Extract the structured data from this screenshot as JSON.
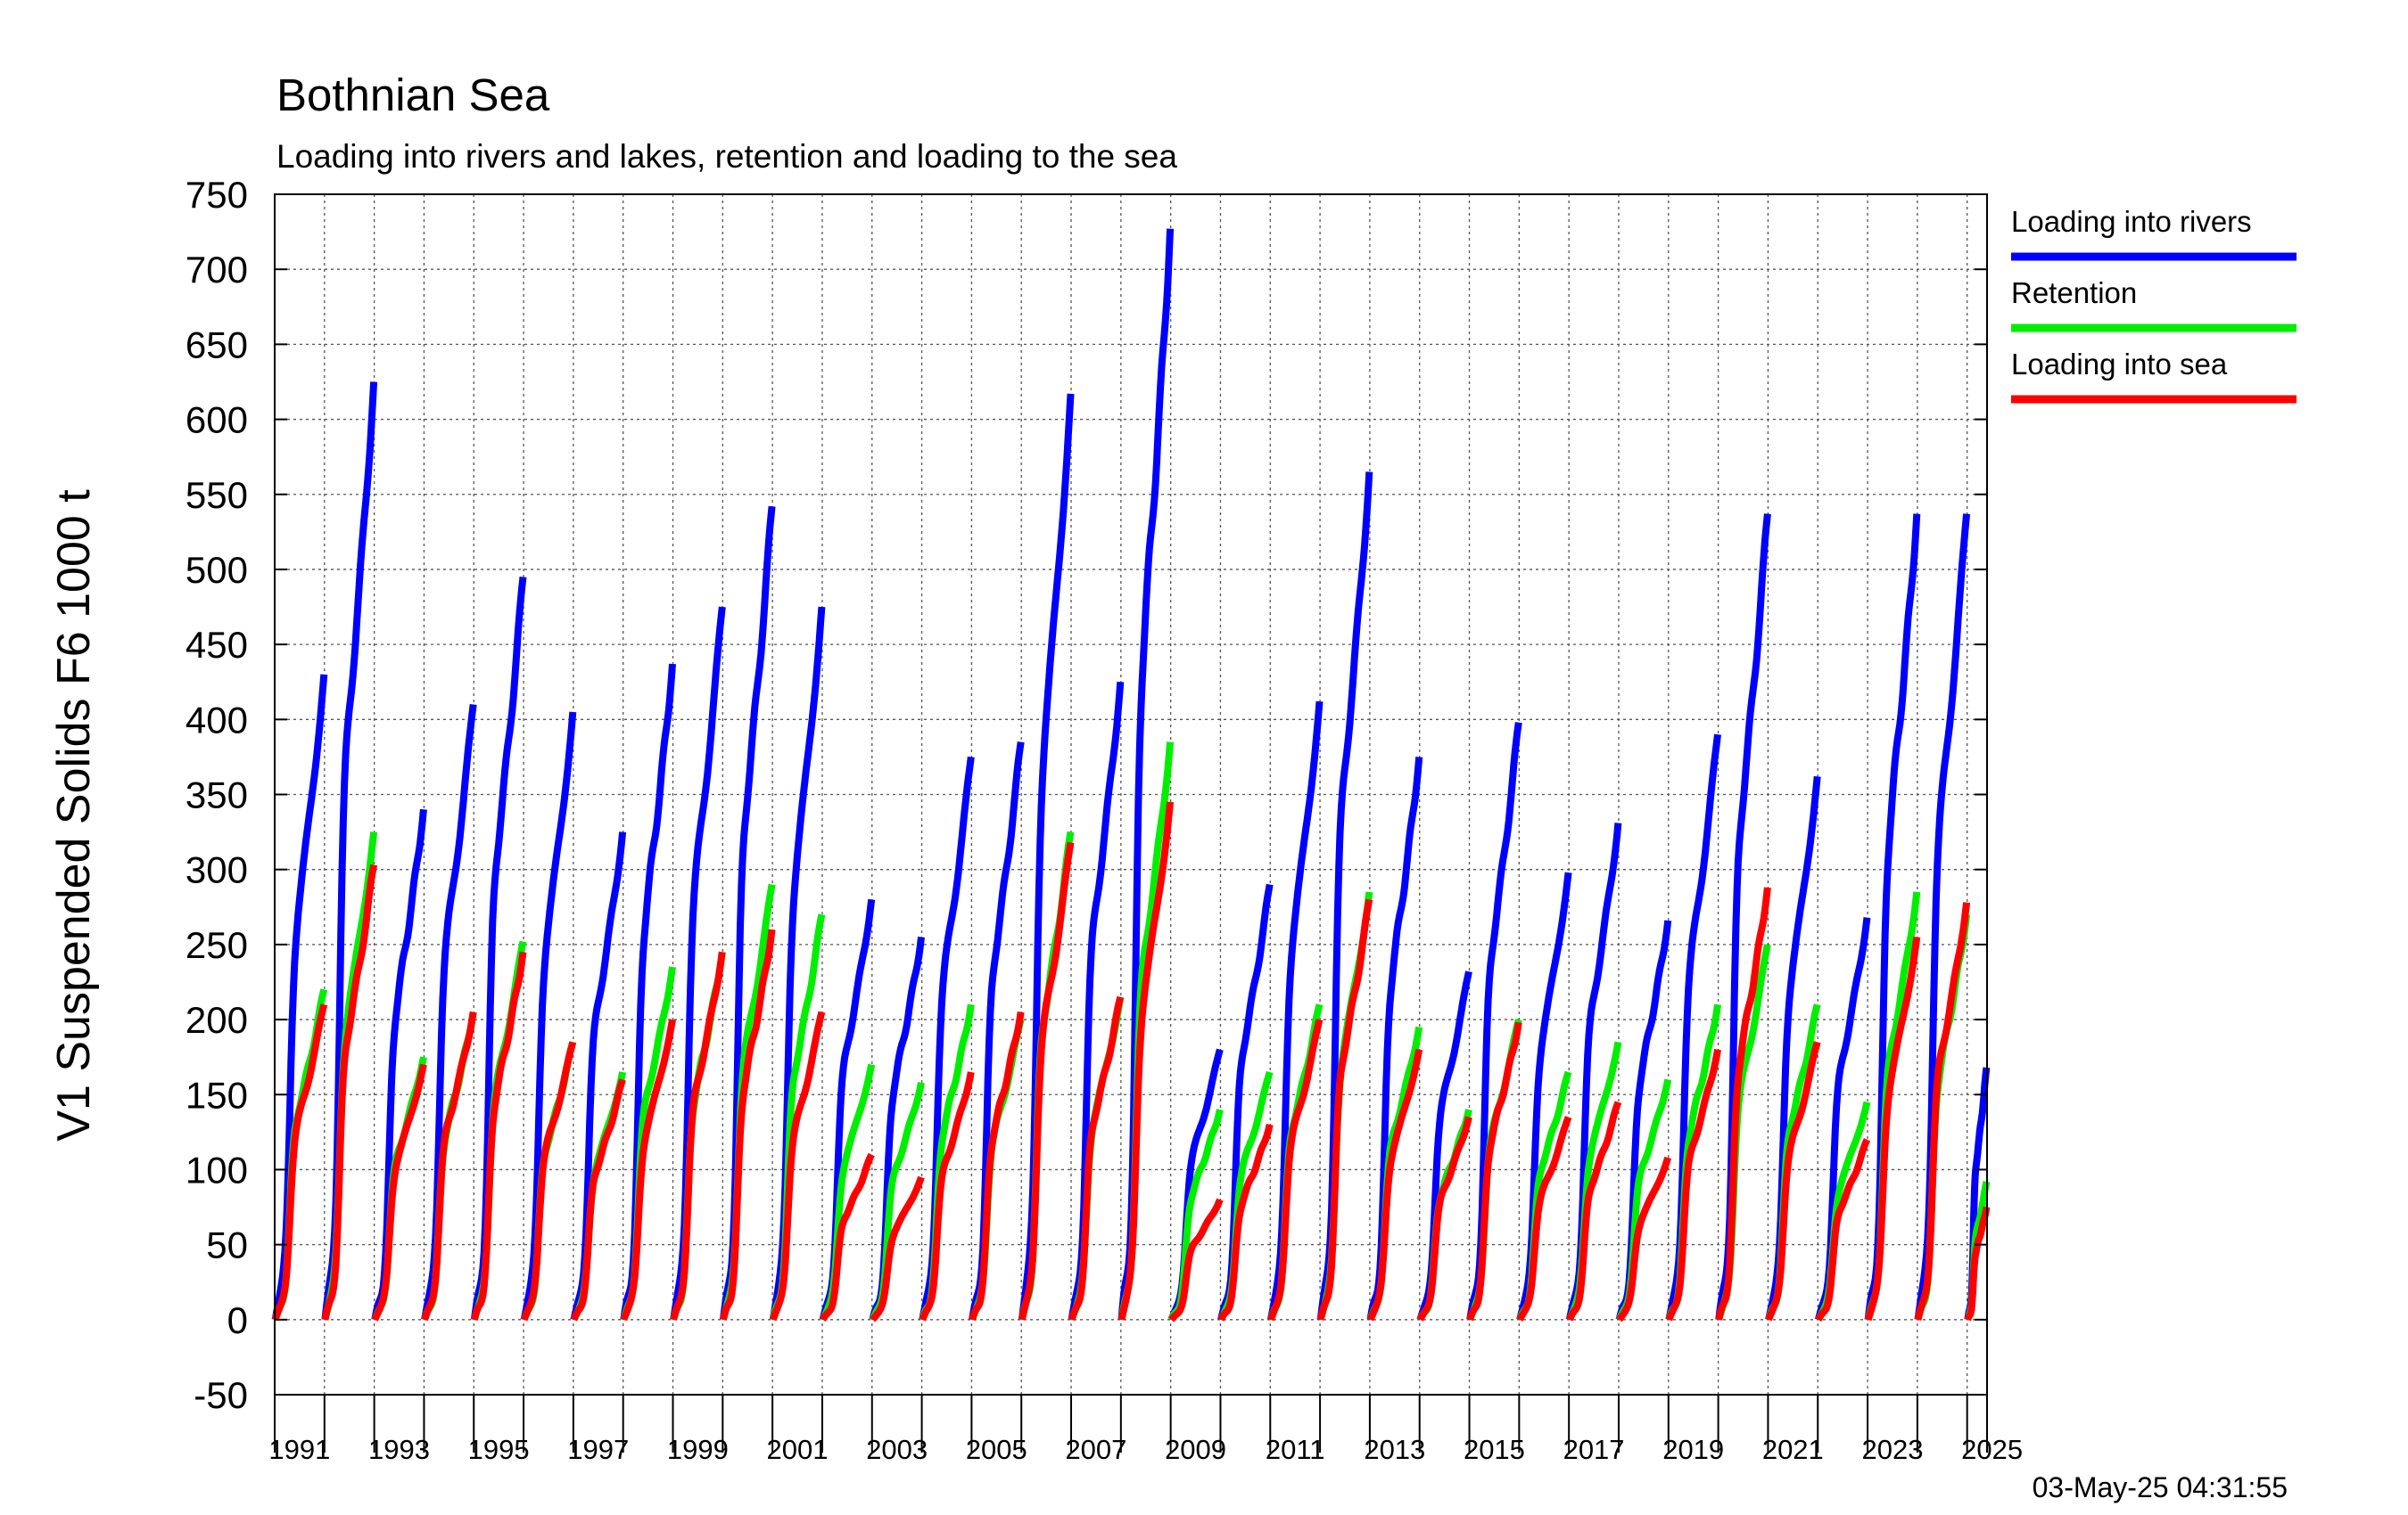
{
  "chart_data": {
    "type": "line",
    "title": "Bothnian Sea",
    "subtitle": "Loading into rivers and lakes, retention and loading to the sea",
    "ylabel": "V1 Suspended Solids F6 1000 t",
    "xlabel": "",
    "ylim": [
      -50,
      750
    ],
    "xlim": [
      1990.0,
      2024.4
    ],
    "yticks": [
      -50,
      0,
      50,
      100,
      150,
      200,
      250,
      300,
      350,
      400,
      450,
      500,
      550,
      600,
      650,
      700,
      750
    ],
    "xticks": [
      "1991",
      "1993",
      "1995",
      "1997",
      "1999",
      "2001",
      "2003",
      "2005",
      "2007",
      "2009",
      "2011",
      "2013",
      "2015",
      "2017",
      "2019",
      "2021",
      "2023",
      "2025"
    ],
    "grid": true,
    "legend_position": "right",
    "timestamp": "03-May-25 04:31:55",
    "years": [
      1990,
      1991,
      1992,
      1993,
      1994,
      1995,
      1996,
      1997,
      1998,
      1999,
      2000,
      2001,
      2002,
      2003,
      2004,
      2005,
      2006,
      2007,
      2008,
      2009,
      2010,
      2011,
      2012,
      2013,
      2014,
      2015,
      2016,
      2017,
      2018,
      2019,
      2020,
      2021,
      2022,
      2023,
      2024
    ],
    "series": [
      {
        "name": "Loading into rivers",
        "color": "#0000ff",
        "annual_totals": [
          430,
          625,
          340,
          410,
          495,
          405,
          325,
          437,
          475,
          542,
          475,
          280,
          255,
          375,
          385,
          617,
          425,
          727,
          180,
          290,
          412,
          565,
          375,
          232,
          398,
          298,
          331,
          266,
          390,
          537,
          362,
          268,
          537,
          537,
          168
        ]
      },
      {
        "name": "Retention",
        "color": "#00ee00",
        "annual_totals": [
          220,
          325,
          175,
          205,
          252,
          185,
          165,
          235,
          245,
          290,
          270,
          170,
          158,
          210,
          200,
          325,
          215,
          385,
          140,
          165,
          210,
          285,
          195,
          140,
          200,
          165,
          185,
          160,
          210,
          250,
          210,
          145,
          285,
          270,
          92
        ]
      },
      {
        "name": "Loading into sea",
        "color": "#ff0000",
        "annual_totals": [
          210,
          303,
          170,
          205,
          245,
          185,
          160,
          200,
          245,
          260,
          205,
          110,
          95,
          165,
          205,
          318,
          215,
          345,
          80,
          130,
          200,
          280,
          180,
          135,
          198,
          135,
          145,
          108,
          180,
          288,
          185,
          120,
          255,
          278,
          75
        ]
      }
    ]
  }
}
